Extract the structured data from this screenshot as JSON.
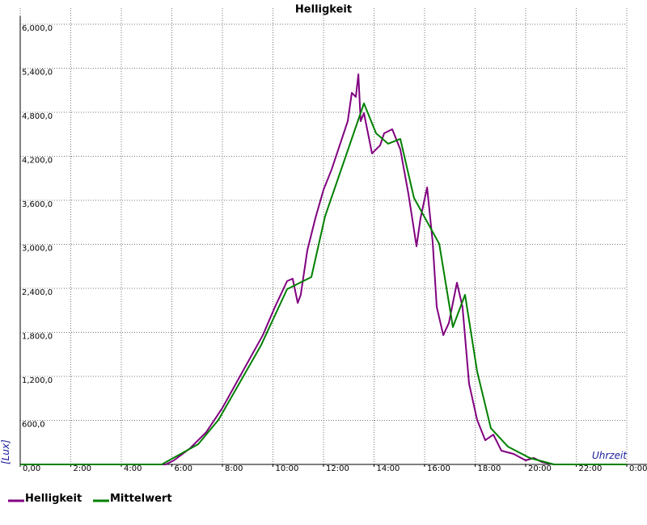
{
  "chart_data": {
    "type": "line",
    "title": "Helligkeit",
    "xlabel": "Uhrzeit",
    "ylabel": "[Lux]",
    "xlim": [
      0,
      24
    ],
    "ylim": [
      0,
      6000
    ],
    "grid": true,
    "legend": "bottom-left",
    "xticks": [
      {
        "value": 0,
        "label": "0,00"
      },
      {
        "value": 2,
        "label": "2:00"
      },
      {
        "value": 4,
        "label": "4:00"
      },
      {
        "value": 6,
        "label": "6:00"
      },
      {
        "value": 8,
        "label": "8:00"
      },
      {
        "value": 10,
        "label": "10:00"
      },
      {
        "value": 12,
        "label": "12:00"
      },
      {
        "value": 14,
        "label": "14:00"
      },
      {
        "value": 16,
        "label": "16:00"
      },
      {
        "value": 18,
        "label": "18:00"
      },
      {
        "value": 20,
        "label": "20:00"
      },
      {
        "value": 22,
        "label": "22:00"
      },
      {
        "value": 24,
        "label": "0:00"
      }
    ],
    "yticks": [
      {
        "value": 600,
        "label": "600,0"
      },
      {
        "value": 1200,
        "label": "1,200,0"
      },
      {
        "value": 1800,
        "label": "1,800,0"
      },
      {
        "value": 2400,
        "label": "2,400,0"
      },
      {
        "value": 3000,
        "label": "3,000,0"
      },
      {
        "value": 3600,
        "label": "3,600,0"
      },
      {
        "value": 4200,
        "label": "4,200,0"
      },
      {
        "value": 4800,
        "label": "4,800,0"
      },
      {
        "value": 5400,
        "label": "5,400,0"
      },
      {
        "value": 6000,
        "label": "6,000,0"
      }
    ],
    "series": [
      {
        "name": "Helligkeit",
        "color": "#800080",
        "x": [
          0,
          5.76,
          6.08,
          6.72,
          7.36,
          7.68,
          8.0,
          8.8,
          9.6,
          10.08,
          10.56,
          10.78,
          10.98,
          11.1,
          11.36,
          11.68,
          12.0,
          12.32,
          12.64,
          12.96,
          13.12,
          13.28,
          13.38,
          13.47,
          13.6,
          13.76,
          13.92,
          14.24,
          14.4,
          14.72,
          15.04,
          15.36,
          15.68,
          15.84,
          16.1,
          16.32,
          16.48,
          16.74,
          16.96,
          17.28,
          17.5,
          17.76,
          18.08,
          18.4,
          18.72,
          19.04,
          19.52,
          20.0,
          20.32,
          20.64,
          21.12,
          24
        ],
        "values": [
          0,
          0,
          55,
          220,
          440,
          605,
          770,
          1266,
          1762,
          2147,
          2499,
          2532,
          2202,
          2312,
          2918,
          3358,
          3743,
          4019,
          4349,
          4679,
          5065,
          5010,
          5318,
          4679,
          4789,
          4514,
          4239,
          4349,
          4514,
          4569,
          4294,
          3688,
          2973,
          3358,
          3776,
          3028,
          2147,
          1762,
          1927,
          2477,
          2147,
          1101,
          605,
          330,
          407,
          187,
          143,
          55,
          88,
          33,
          0,
          0
        ]
      },
      {
        "name": "Mittelwert",
        "color": "#008000",
        "x": [
          0,
          5.6,
          7.04,
          7.84,
          9.52,
          10.56,
          11.52,
          12.06,
          13.6,
          14.08,
          14.56,
          15.04,
          15.58,
          16.58,
          17.12,
          17.6,
          18.08,
          18.62,
          19.3,
          20.16,
          21.12,
          24
        ],
        "values": [
          0,
          0,
          275,
          605,
          1618,
          2389,
          2554,
          3380,
          4921,
          4514,
          4371,
          4437,
          3633,
          3006,
          1872,
          2312,
          1266,
          495,
          242,
          88,
          0,
          0
        ]
      }
    ]
  }
}
